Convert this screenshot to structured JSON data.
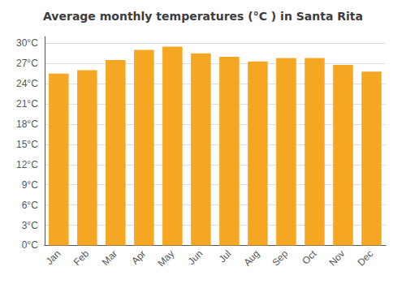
{
  "chart_data": {
    "type": "bar",
    "title": "Average monthly temperatures (°C ) in Santa Rita",
    "categories": [
      "Jan",
      "Feb",
      "Mar",
      "Apr",
      "May",
      "Jun",
      "Jul",
      "Aug",
      "Sep",
      "Oct",
      "Nov",
      "Dec"
    ],
    "values": [
      25.5,
      26.0,
      27.5,
      29.0,
      29.5,
      28.5,
      28.0,
      27.3,
      27.8,
      27.8,
      26.8,
      25.8
    ],
    "color": "#F5A623",
    "ylim": [
      0,
      31
    ],
    "yticks": [
      {
        "value": 0,
        "label": "0°C"
      },
      {
        "value": 3,
        "label": "3°C"
      },
      {
        "value": 6,
        "label": "6°C"
      },
      {
        "value": 9,
        "label": "9°C"
      },
      {
        "value": 12,
        "label": "12°C"
      },
      {
        "value": 15,
        "label": "15°C"
      },
      {
        "value": 18,
        "label": "18°C"
      },
      {
        "value": 21,
        "label": "21°C"
      },
      {
        "value": 24,
        "label": "24°C"
      },
      {
        "value": 27,
        "label": "27°C"
      },
      {
        "value": 30,
        "label": "30°C"
      }
    ],
    "grid": true
  }
}
